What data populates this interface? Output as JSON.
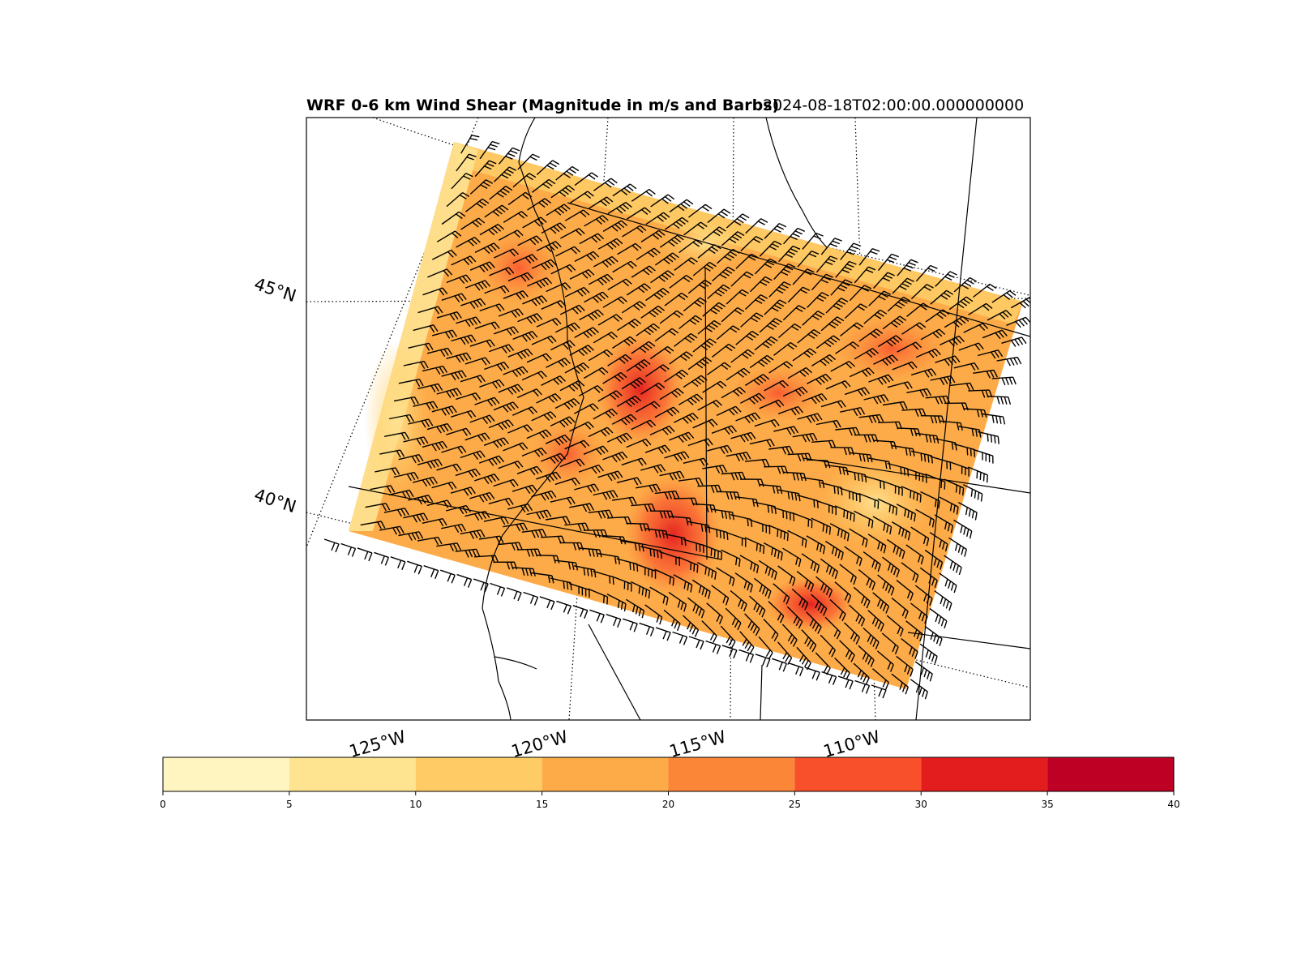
{
  "title": "WRF 0-6 km Wind Shear (Magnitude in m/s and Barbs)",
  "valid_time": "2024-08-18T02:00:00.000000000",
  "lat_labels": [
    "45°N",
    "40°N"
  ],
  "lon_labels": [
    "125°W",
    "120°W",
    "115°W",
    "110°W"
  ],
  "colorbar": {
    "ticks": [
      "0",
      "5",
      "10",
      "15",
      "20",
      "25",
      "30",
      "35",
      "40"
    ],
    "levels": [
      0,
      5,
      10,
      15,
      20,
      25,
      30,
      35,
      40
    ],
    "colors": [
      "#fff5c0",
      "#fee391",
      "#fecb65",
      "#fdab48",
      "#fc8638",
      "#f8502b",
      "#e31c1e",
      "#be0025"
    ]
  }
}
